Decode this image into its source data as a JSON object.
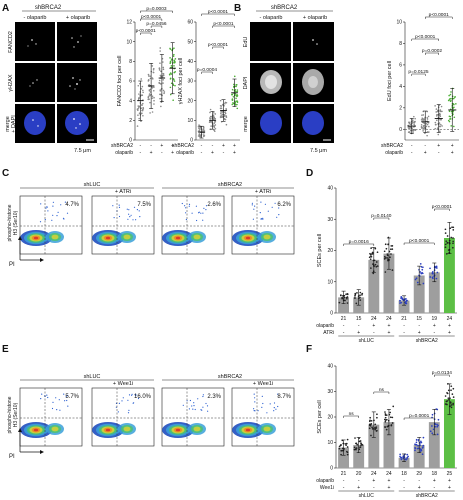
{
  "panels": {
    "A": {
      "letter": "A",
      "header": "shBRCA2",
      "col_labels": [
        "- olaparib",
        "+ olaparib"
      ],
      "row_labels": [
        "FANCD2",
        "γH2AX",
        "merge\n+ DAPI"
      ],
      "scale_bar": "7.5 μm"
    },
    "B": {
      "letter": "B",
      "header": "shBRCA2",
      "col_labels": [
        "- olaparib",
        "+ olaparib"
      ],
      "row_labels": [
        "EdU",
        "DAPI",
        "merge"
      ],
      "scale_bar": "7.5 μm"
    },
    "C": {
      "letter": "C",
      "group_labels": [
        "shLUC",
        "shBRCA2"
      ],
      "plot_labels": [
        "",
        "+ ATRi",
        "",
        "+ ATRi"
      ],
      "percents": [
        "4.7%",
        "7.5%",
        "2.6%",
        "6.2%"
      ],
      "ylabel": "phospho-histone\nH3 (Ser10)",
      "xlabel": "PI"
    },
    "E": {
      "letter": "E",
      "group_labels": [
        "shLUC",
        "shBRCA2"
      ],
      "plot_labels": [
        "",
        "+ Wee1i",
        "",
        "+ Wee1i"
      ],
      "percents": [
        "5.7%",
        "16.0%",
        "2.3%",
        "8.7%"
      ],
      "ylabel": "phospho-histone\nH3 (Ser10)",
      "xlabel": "PI"
    },
    "D": {
      "letter": "D"
    },
    "F": {
      "letter": "F"
    }
  },
  "colors": {
    "bar_gray": "#9e9e9e",
    "bar_green": "#5cbf45",
    "dot_gray": "#8a8a8a",
    "dot_green": "#4caf35",
    "dot_dark": "#222222",
    "dot_blue": "#2b3fc0"
  },
  "chart_data": [
    {
      "id": "A1",
      "type": "scatter",
      "ylabel": "FANCD2 foci per cell",
      "ylim": [
        0,
        12
      ],
      "yticks": [
        0,
        2,
        4,
        6,
        8,
        10,
        12
      ],
      "cond_rows": [
        {
          "label": "shBRCA2",
          "values": [
            "-",
            "-",
            "+",
            "+"
          ]
        },
        {
          "label": "olaparib",
          "values": [
            "-",
            "+",
            "-",
            "+"
          ]
        }
      ],
      "groups": [
        {
          "mean": 4.0,
          "sd": 2.0,
          "color": "gray"
        },
        {
          "mean": 5.5,
          "sd": 2.3,
          "color": "gray"
        },
        {
          "mean": 6.3,
          "sd": 2.4,
          "color": "gray"
        },
        {
          "mean": 7.3,
          "sd": 2.6,
          "color": "green"
        }
      ],
      "comparisons": [
        {
          "from": 0,
          "to": 1,
          "label": "p<0.0001"
        },
        {
          "from": 1,
          "to": 2,
          "label": "p=0.0456"
        },
        {
          "from": 0,
          "to": 2,
          "label": "p<0.0001"
        },
        {
          "from": 0,
          "to": 3,
          "label": "p=0.0003"
        }
      ]
    },
    {
      "id": "A2",
      "type": "scatter",
      "ylabel": "γH2AX foci per cell",
      "ylim": [
        0,
        60
      ],
      "yticks": [
        0,
        10,
        20,
        30,
        40,
        50,
        60
      ],
      "cond_rows": [
        {
          "label": "shBRCA2",
          "values": [
            "-",
            "-",
            "+",
            "+"
          ]
        },
        {
          "label": "olaparib",
          "values": [
            "-",
            "+",
            "-",
            "+"
          ]
        }
      ],
      "groups": [
        {
          "mean": 4.0,
          "sd": 3.0,
          "color": "gray"
        },
        {
          "mean": 10.0,
          "sd": 4.5,
          "color": "gray"
        },
        {
          "mean": 15.0,
          "sd": 5.5,
          "color": "gray"
        },
        {
          "mean": 24.0,
          "sd": 7.0,
          "color": "green"
        }
      ],
      "comparisons": [
        {
          "from": 0,
          "to": 1,
          "label": "p=0.0004"
        },
        {
          "from": 1,
          "to": 2,
          "label": "p<0.0001"
        },
        {
          "from": 1,
          "to": 3,
          "label": "p<0.0001"
        },
        {
          "from": 0,
          "to": 3,
          "label": "p<0.0001"
        }
      ]
    },
    {
      "id": "B",
      "type": "scatter",
      "ylabel": "EdU foci per cell",
      "ylim": [
        -1,
        10
      ],
      "yticks": [
        0,
        2,
        4,
        6,
        8,
        10
      ],
      "cond_rows": [
        {
          "label": "shBRCA2",
          "values": [
            "-",
            "-",
            "+",
            "+"
          ]
        },
        {
          "label": "olaparib",
          "values": [
            "-",
            "+",
            "-",
            "+"
          ]
        }
      ],
      "groups": [
        {
          "mean": 0.3,
          "sd": 0.7,
          "color": "gray"
        },
        {
          "mean": 0.7,
          "sd": 1.0,
          "color": "gray"
        },
        {
          "mean": 1.0,
          "sd": 1.3,
          "color": "gray"
        },
        {
          "mean": 1.8,
          "sd": 2.0,
          "color": "green"
        }
      ],
      "comparisons": [
        {
          "from": 0,
          "to": 1,
          "label": "p=0.0125"
        },
        {
          "from": 1,
          "to": 2,
          "label": "p=0.0002"
        },
        {
          "from": 0,
          "to": 2,
          "label": "p<0.0001"
        },
        {
          "from": 1,
          "to": 3,
          "label": "p<0.0001"
        }
      ]
    },
    {
      "id": "D",
      "type": "bar",
      "ylabel": "SCEs per cell",
      "ylim": [
        0,
        40
      ],
      "yticks": [
        0,
        10,
        20,
        30,
        40
      ],
      "n_row": [
        "21",
        "15",
        "24",
        "24",
        "21",
        "15",
        "19",
        "24"
      ],
      "cond_rows": [
        {
          "label": "olaparib",
          "values": [
            "-",
            "-",
            "+",
            "+",
            "-",
            "-",
            "+",
            "+"
          ]
        },
        {
          "label": "ATRi",
          "values": [
            "-",
            "+",
            "-",
            "+",
            "-",
            "+",
            "-",
            "+"
          ]
        }
      ],
      "group_labels": [
        "shLUC",
        "shBRCA2"
      ],
      "values": [
        5,
        5,
        17,
        19,
        4,
        12,
        13,
        24
      ],
      "sd": [
        2,
        2.5,
        4,
        5,
        1.5,
        3,
        3,
        5
      ],
      "colors": [
        "gray",
        "gray",
        "gray",
        "gray",
        "gray",
        "gray",
        "gray",
        "green"
      ],
      "comparisons": [
        {
          "from": 0,
          "to": 2,
          "label": "p=0.0016"
        },
        {
          "from": 2,
          "to": 3,
          "label": "p=0.0140"
        },
        {
          "from": 4,
          "to": 6,
          "label": "p<0.0001"
        },
        {
          "from": 6,
          "to": 7,
          "label": "p<0.0001"
        }
      ]
    },
    {
      "id": "F",
      "type": "bar",
      "ylabel": "SCEs per cell",
      "ylim": [
        0,
        40
      ],
      "yticks": [
        0,
        10,
        20,
        30,
        40
      ],
      "n_row": [
        "21",
        "20",
        "24",
        "24",
        "18",
        "29",
        "18",
        "25"
      ],
      "cond_rows": [
        {
          "label": "olaparib",
          "values": [
            "-",
            "-",
            "+",
            "+",
            "-",
            "-",
            "+",
            "+"
          ]
        },
        {
          "label": "Wee1i",
          "values": [
            "-",
            "+",
            "-",
            "+",
            "-",
            "+",
            "-",
            "+"
          ]
        }
      ],
      "group_labels": [
        "shLUC",
        "shBRCA2"
      ],
      "values": [
        8,
        9,
        17,
        18,
        4,
        9,
        18,
        27
      ],
      "sd": [
        3,
        3,
        5,
        5,
        1.5,
        3,
        5,
        6
      ],
      "colors": [
        "gray",
        "gray",
        "gray",
        "gray",
        "gray",
        "gray",
        "gray",
        "green"
      ],
      "comparisons": [
        {
          "from": 0,
          "to": 1,
          "label": "ns"
        },
        {
          "from": 2,
          "to": 3,
          "label": "ns"
        },
        {
          "from": 4,
          "to": 6,
          "label": "p=0.0001"
        },
        {
          "from": 6,
          "to": 7,
          "label": "p=0.0134"
        }
      ]
    }
  ]
}
